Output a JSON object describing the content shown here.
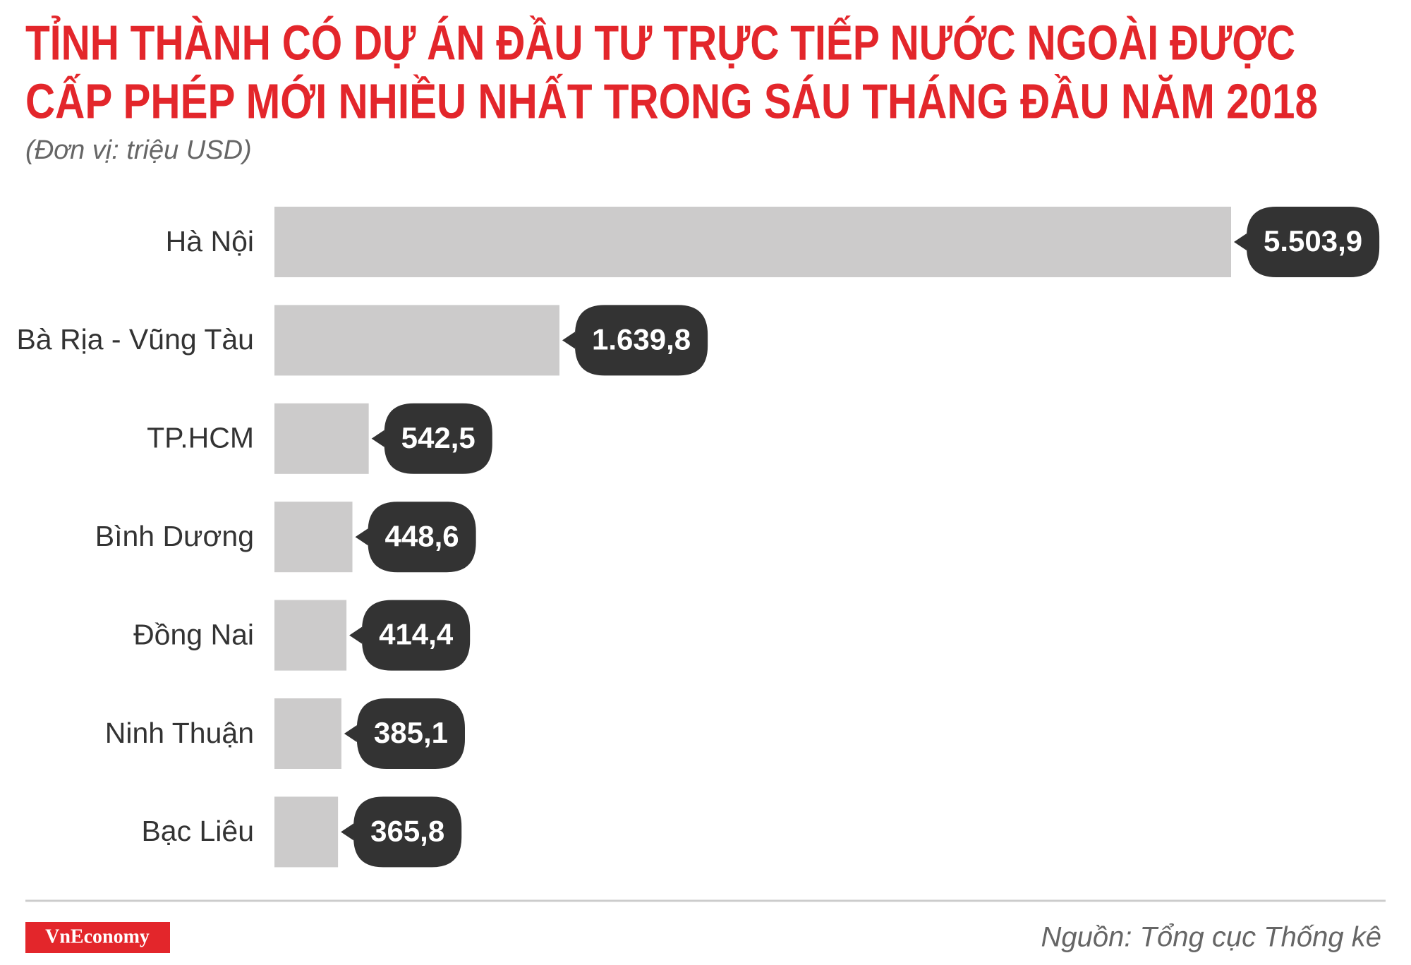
{
  "chart_data": {
    "type": "bar",
    "orientation": "horizontal",
    "title": [
      "TỈNH THÀNH CÓ DỰ ÁN ĐẦU TƯ TRỰC TIẾP NƯỚC NGOÀI ĐƯỢC",
      "CẤP PHÉP MỚI NHIỀU NHẤT TRONG SÁU THÁNG ĐẦU NĂM 2018"
    ],
    "subtitle": "(Đơn vị: triệu USD)",
    "categories": [
      "Hà Nội",
      "Bà Rịa - Vũng Tàu",
      "TP.HCM",
      "Bình Dương",
      "Đồng Nai",
      "Ninh Thuận",
      "Bạc Liêu"
    ],
    "values": [
      5503.9,
      1639.8,
      542.5,
      448.6,
      414.4,
      385.1,
      365.8
    ],
    "value_labels": [
      "5.503,9",
      "1.639,8",
      "542,5",
      "448,6",
      "414,4",
      "385,1",
      "365,8"
    ],
    "color": "#cccbcb",
    "label_color": "#333333",
    "source": "Nguồn: Tổng cục Thống kê",
    "logo": "VnEconomy"
  }
}
